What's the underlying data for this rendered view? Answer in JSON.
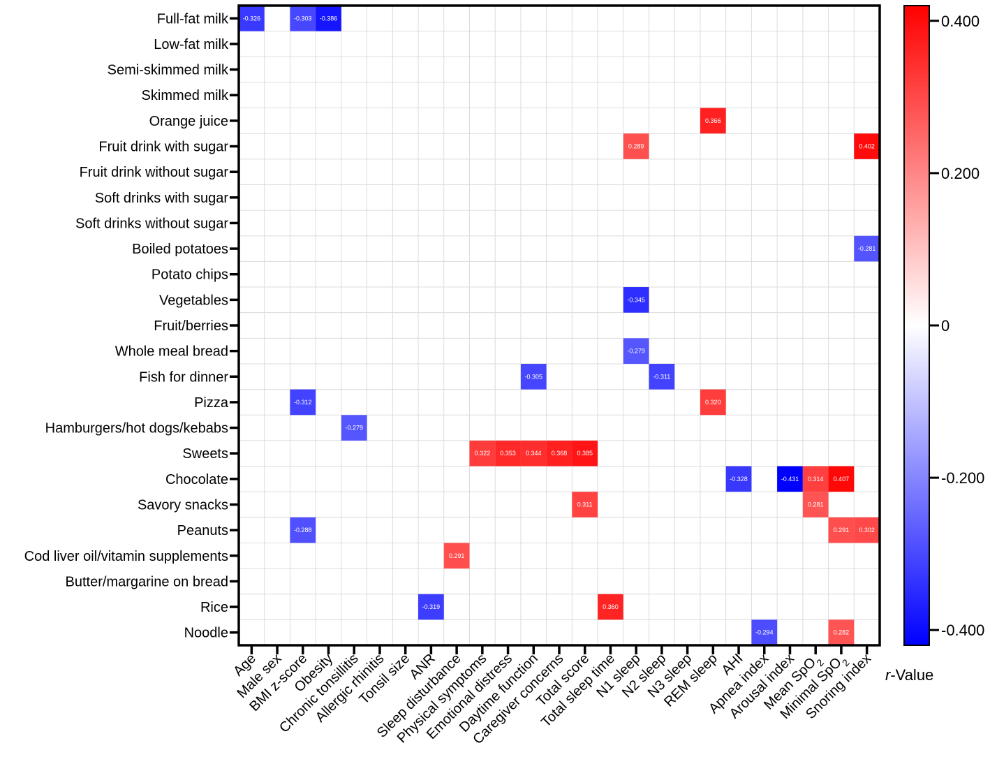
{
  "chart_data": {
    "type": "heatmap",
    "title": "",
    "rows": [
      "Full-fat milk",
      "Low-fat milk",
      "Semi-skimmed milk",
      "Skimmed milk",
      "Orange juice",
      "Fruit drink with sugar",
      "Fruit drink without sugar",
      "Soft drinks with sugar",
      "Soft drinks without sugar",
      "Boiled potatoes",
      "Potato chips",
      "Vegetables",
      "Fruit/berries",
      "Whole meal bread",
      "Fish for dinner",
      "Pizza",
      "Hamburgers/hot dogs/kebabs",
      "Sweets",
      "Chocolate",
      "Savory snacks",
      "Peanuts",
      "Cod liver oil/vitamin supplements",
      "Butter/margarine on bread",
      "Rice",
      "Noodle"
    ],
    "columns": [
      {
        "pre": "Age",
        "sub": "",
        "post": ""
      },
      {
        "pre": "Male sex",
        "sub": "",
        "post": ""
      },
      {
        "pre": "BMI z-score",
        "sub": "",
        "post": ""
      },
      {
        "pre": "Obesity",
        "sub": "",
        "post": ""
      },
      {
        "pre": "Chronic tonsillitis",
        "sub": "",
        "post": ""
      },
      {
        "pre": "Allergic rhinitis",
        "sub": "",
        "post": ""
      },
      {
        "pre": "Tonsil size",
        "sub": "",
        "post": ""
      },
      {
        "pre": "ANR",
        "sub": "",
        "post": ""
      },
      {
        "pre": "Sleep disturbance",
        "sub": "",
        "post": ""
      },
      {
        "pre": "Physical symptoms",
        "sub": "",
        "post": ""
      },
      {
        "pre": "Emotional distress",
        "sub": "",
        "post": ""
      },
      {
        "pre": "Daytime function",
        "sub": "",
        "post": ""
      },
      {
        "pre": "Caregiver concerns",
        "sub": "",
        "post": ""
      },
      {
        "pre": "Total score",
        "sub": "",
        "post": ""
      },
      {
        "pre": "Total sleep time",
        "sub": "",
        "post": ""
      },
      {
        "pre": "N1 sleep",
        "sub": "",
        "post": ""
      },
      {
        "pre": "N2 sleep",
        "sub": "",
        "post": ""
      },
      {
        "pre": "N3 sleep",
        "sub": "",
        "post": ""
      },
      {
        "pre": "REM sleep",
        "sub": "",
        "post": ""
      },
      {
        "pre": "AHI",
        "sub": "",
        "post": ""
      },
      {
        "pre": "Apnea index",
        "sub": "",
        "post": ""
      },
      {
        "pre": "Arousal index",
        "sub": "",
        "post": ""
      },
      {
        "pre": "Mean SpO",
        "sub": "2",
        "post": ""
      },
      {
        "pre": "Minimal SpO",
        "sub": "2",
        "post": ""
      },
      {
        "pre": "Snoring index",
        "sub": "",
        "post": ""
      }
    ],
    "cells": [
      {
        "row": 0,
        "col": 0,
        "value": -0.326,
        "label": "-0.326"
      },
      {
        "row": 0,
        "col": 2,
        "value": -0.303,
        "label": "-0.303"
      },
      {
        "row": 0,
        "col": 3,
        "value": -0.386,
        "label": "-0.386"
      },
      {
        "row": 4,
        "col": 18,
        "value": 0.366,
        "label": "0.366"
      },
      {
        "row": 5,
        "col": 15,
        "value": 0.289,
        "label": "0.289"
      },
      {
        "row": 5,
        "col": 24,
        "value": 0.402,
        "label": "0.402"
      },
      {
        "row": 9,
        "col": 24,
        "value": -0.281,
        "label": "-0.281"
      },
      {
        "row": 11,
        "col": 15,
        "value": -0.345,
        "label": "-0.345"
      },
      {
        "row": 13,
        "col": 15,
        "value": -0.279,
        "label": "-0.279"
      },
      {
        "row": 14,
        "col": 11,
        "value": -0.305,
        "label": "-0.305"
      },
      {
        "row": 14,
        "col": 16,
        "value": -0.311,
        "label": "-0.311"
      },
      {
        "row": 15,
        "col": 2,
        "value": -0.312,
        "label": "-0.312"
      },
      {
        "row": 15,
        "col": 18,
        "value": 0.32,
        "label": "0.320"
      },
      {
        "row": 16,
        "col": 4,
        "value": -0.279,
        "label": "-0.279"
      },
      {
        "row": 17,
        "col": 9,
        "value": 0.322,
        "label": "0.322"
      },
      {
        "row": 17,
        "col": 10,
        "value": 0.353,
        "label": "0.353"
      },
      {
        "row": 17,
        "col": 11,
        "value": 0.344,
        "label": "0.344"
      },
      {
        "row": 17,
        "col": 12,
        "value": 0.368,
        "label": "0.368"
      },
      {
        "row": 17,
        "col": 13,
        "value": 0.385,
        "label": "0.385"
      },
      {
        "row": 18,
        "col": 19,
        "value": -0.328,
        "label": "-0.328"
      },
      {
        "row": 18,
        "col": 21,
        "value": -0.431,
        "label": "-0.431"
      },
      {
        "row": 18,
        "col": 22,
        "value": 0.314,
        "label": "0.314"
      },
      {
        "row": 18,
        "col": 23,
        "value": 0.407,
        "label": "0.407"
      },
      {
        "row": 19,
        "col": 13,
        "value": 0.311,
        "label": "0.311"
      },
      {
        "row": 19,
        "col": 22,
        "value": 0.281,
        "label": "0.281"
      },
      {
        "row": 20,
        "col": 2,
        "value": -0.288,
        "label": "-0.288"
      },
      {
        "row": 20,
        "col": 23,
        "value": 0.291,
        "label": "0.291"
      },
      {
        "row": 20,
        "col": 24,
        "value": 0.302,
        "label": "0.302"
      },
      {
        "row": 21,
        "col": 8,
        "value": 0.291,
        "label": "0.291"
      },
      {
        "row": 23,
        "col": 7,
        "value": -0.319,
        "label": "-0.319"
      },
      {
        "row": 23,
        "col": 14,
        "value": 0.36,
        "label": "0.360"
      },
      {
        "row": 24,
        "col": 20,
        "value": -0.294,
        "label": "-0.294"
      },
      {
        "row": 24,
        "col": 23,
        "value": 0.282,
        "label": "0.282"
      }
    ],
    "colorbar": {
      "title_italic": "r",
      "title_rest": "-Value",
      "range": [
        -0.42,
        0.42
      ],
      "ticks": [
        {
          "value": 0.4,
          "label": "0.400"
        },
        {
          "value": 0.2,
          "label": "0.200"
        },
        {
          "value": 0,
          "label": "0"
        },
        {
          "value": -0.2,
          "label": "-0.200"
        },
        {
          "value": -0.4,
          "label": "-0.400"
        }
      ],
      "colors": {
        "high": "#ff0000",
        "mid": "#ffffff",
        "low": "#0000ff"
      }
    },
    "grid": true,
    "grid_color": "#dcdcdc"
  }
}
